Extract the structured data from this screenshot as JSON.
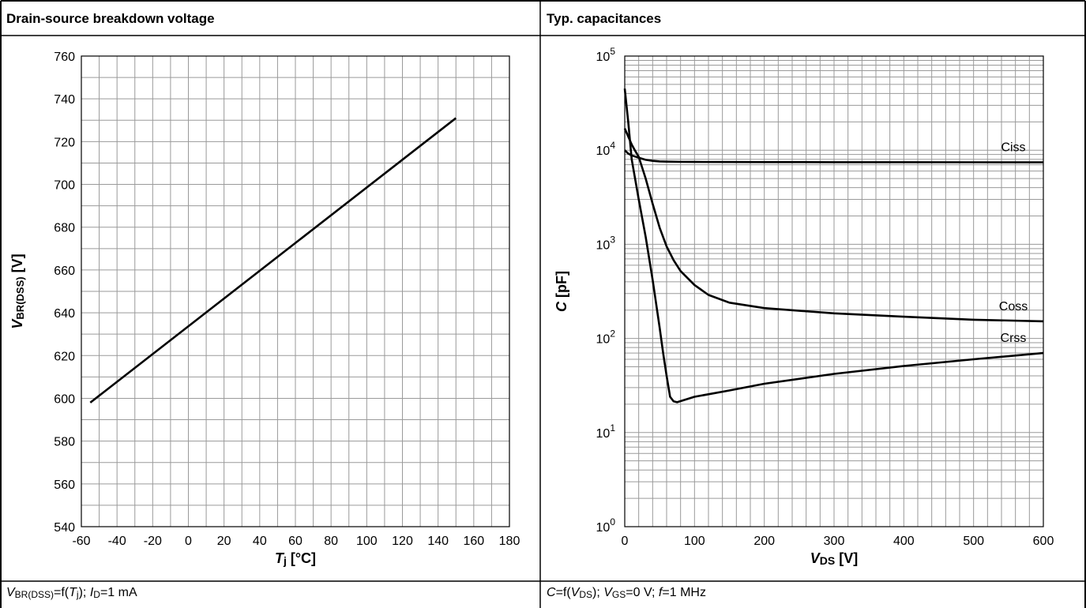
{
  "left_panel": {
    "header": "Drain-source breakdown voltage",
    "footer_parts": [
      {
        "t": "V",
        "i": true
      },
      {
        "t": "BR(DSS)",
        "s": true
      },
      {
        "t": "=f("
      },
      {
        "t": "T",
        "i": true
      },
      {
        "t": "j",
        "s": true
      },
      {
        "t": ");  "
      },
      {
        "t": "I",
        "i": true
      },
      {
        "t": "D",
        "s": true
      },
      {
        "t": "=1 mA"
      }
    ]
  },
  "right_panel": {
    "header": "Typ. capacitances",
    "footer_parts": [
      {
        "t": "C",
        "i": true
      },
      {
        "t": "=f("
      },
      {
        "t": "V",
        "i": true
      },
      {
        "t": "DS",
        "s": true
      },
      {
        "t": ");  "
      },
      {
        "t": "V",
        "i": true
      },
      {
        "t": "GS",
        "s": true
      },
      {
        "t": "=0 V;  "
      },
      {
        "t": "f",
        "i": true
      },
      {
        "t": "=1 MHz"
      }
    ]
  },
  "chart_data": [
    {
      "type": "line",
      "title": "Drain-source breakdown voltage",
      "xlabel_parts": [
        {
          "t": "T",
          "i": true
        },
        {
          "t": "j",
          "s": true
        },
        {
          "t": " [°C]"
        }
      ],
      "ylabel_parts": [
        {
          "t": "V",
          "i": true
        },
        {
          "t": "BR(DSS)",
          "s": true
        },
        {
          "t": " [V]"
        }
      ],
      "xlim": [
        -60,
        180
      ],
      "ylim": [
        540,
        760
      ],
      "x_ticks": [
        -60,
        -40,
        -20,
        0,
        20,
        40,
        60,
        80,
        100,
        120,
        140,
        160,
        180
      ],
      "y_ticks": [
        540,
        560,
        580,
        600,
        620,
        640,
        660,
        680,
        700,
        720,
        740,
        760
      ],
      "grid": true,
      "series": [
        {
          "x": [
            -55,
            150
          ],
          "y": [
            598,
            731
          ]
        }
      ],
      "line_color": "#000000"
    },
    {
      "type": "line",
      "title": "Typ. capacitances",
      "xlabel_parts": [
        {
          "t": "V",
          "i": true
        },
        {
          "t": "DS",
          "s": true
        },
        {
          "t": " [V]"
        }
      ],
      "ylabel_parts": [
        {
          "t": "C",
          "i": true
        },
        {
          "t": " [pF]"
        }
      ],
      "xlim": [
        0,
        600
      ],
      "ylim": [
        1,
        100000
      ],
      "yscale": "log",
      "x_ticks": [
        0,
        100,
        200,
        300,
        400,
        500,
        600
      ],
      "y_ticks": [
        "10^0",
        "10^1",
        "10^2",
        "10^3",
        "10^4",
        "10^5"
      ],
      "grid": true,
      "series": [
        {
          "name": "Ciss",
          "x": [
            0,
            5,
            10,
            20,
            30,
            40,
            50,
            60,
            80,
            100,
            150,
            200,
            300,
            400,
            500,
            600
          ],
          "y": [
            10000,
            9200,
            8800,
            8300,
            7900,
            7700,
            7600,
            7550,
            7520,
            7500,
            7480,
            7470,
            7460,
            7450,
            7440,
            7430
          ]
        },
        {
          "name": "Coss",
          "x": [
            0,
            5,
            10,
            15,
            20,
            30,
            40,
            50,
            60,
            70,
            80,
            100,
            120,
            150,
            200,
            300,
            400,
            500,
            600
          ],
          "y": [
            17000,
            14000,
            11500,
            9800,
            8500,
            5000,
            2700,
            1500,
            950,
            680,
            520,
            370,
            290,
            240,
            210,
            185,
            170,
            158,
            152
          ]
        },
        {
          "name": "Crss",
          "x": [
            0,
            5,
            10,
            20,
            30,
            40,
            50,
            55,
            60,
            65,
            70,
            75,
            100,
            150,
            200,
            300,
            400,
            500,
            600
          ],
          "y": [
            45000,
            20000,
            8000,
            3000,
            1200,
            420,
            130,
            70,
            40,
            24,
            21.5,
            21,
            24,
            28,
            33,
            42,
            51,
            60,
            70
          ]
        }
      ],
      "line_color": "#000000"
    }
  ]
}
